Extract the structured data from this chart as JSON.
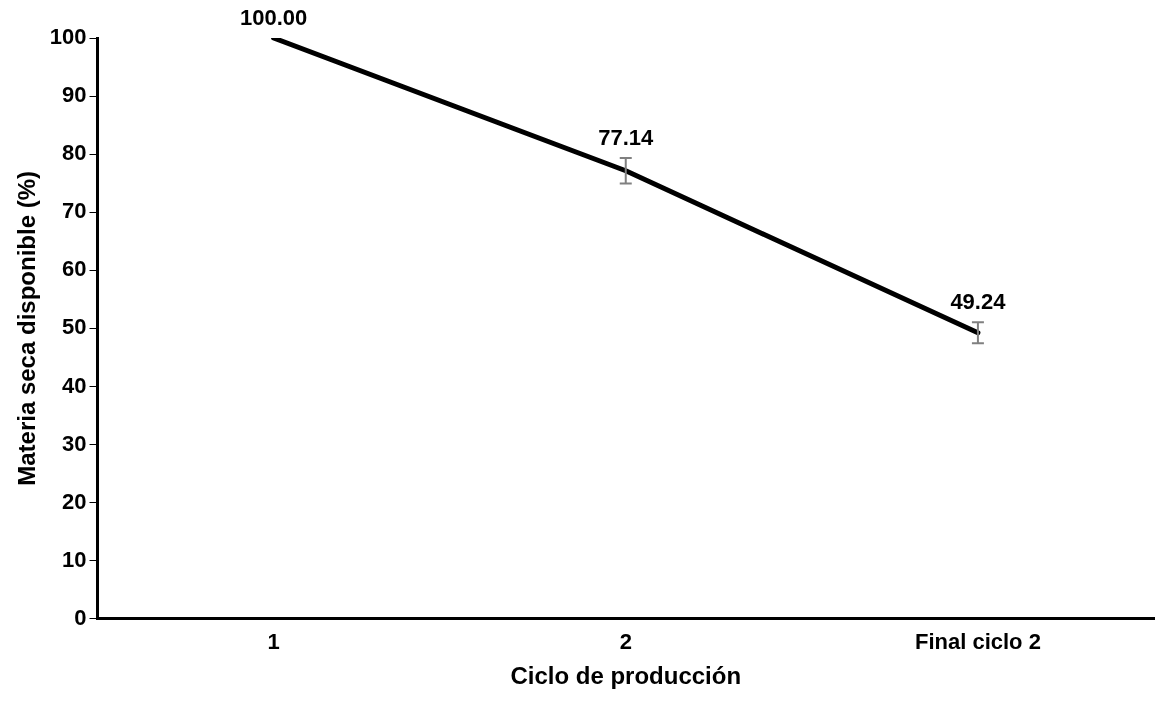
{
  "chart_data": {
    "type": "line",
    "xlabel": "Ciclo de producción",
    "ylabel": "Materia seca disponible (%)",
    "categories": [
      "1",
      "2",
      "Final ciclo 2"
    ],
    "series": [
      {
        "color": "#000000",
        "values": [
          100.0,
          77.14,
          49.24
        ],
        "errors": [
          null,
          2.2,
          1.8
        ],
        "value_labels": [
          "100.00",
          "77.14",
          "49.24"
        ]
      }
    ],
    "ylim": [
      0,
      100
    ],
    "yticks": [
      0,
      10,
      20,
      30,
      40,
      50,
      60,
      70,
      80,
      90,
      100
    ],
    "grid": false,
    "legend": false,
    "marker": "none",
    "line_style": "solid"
  }
}
